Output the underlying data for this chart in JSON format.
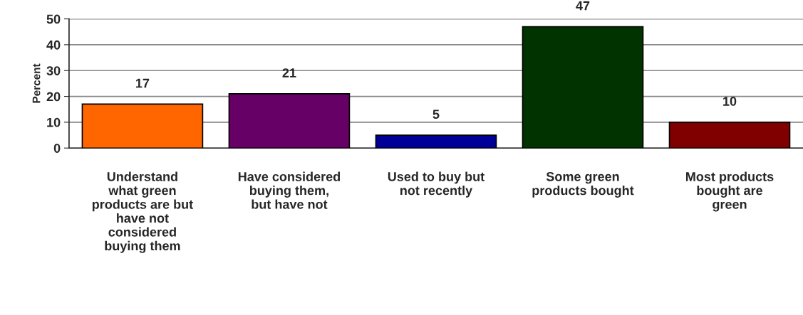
{
  "chart_data": {
    "type": "bar",
    "ylabel": "Percent",
    "categories": [
      "Understand\nwhat green\nproducts are but\nhave not\nconsidered\nbuying them",
      "Have considered\nbuying them,\nbut have not",
      "Used to buy but\nnot recently",
      "Some green\nproducts bought",
      "Most products\nbought are\ngreen"
    ],
    "values": [
      17,
      21,
      5,
      47,
      10
    ],
    "colors": [
      "#ff6600",
      "#660066",
      "#000099",
      "#003300",
      "#800000"
    ],
    "ylim": [
      0,
      50
    ],
    "yticks": [
      0,
      10,
      20,
      30,
      40,
      50
    ],
    "grid": "y",
    "data_labels": true
  }
}
